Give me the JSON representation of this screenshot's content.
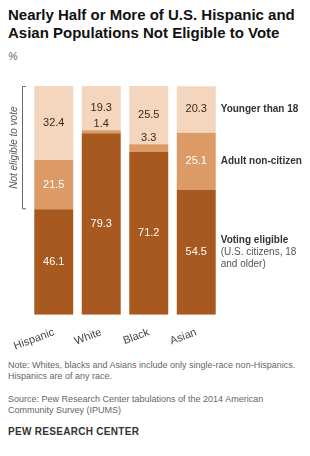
{
  "chart_data": {
    "type": "bar",
    "title": "Nearly Half or More of U.S. Hispanic and Asian Populations Not Eligible to Vote",
    "subtitle": "%",
    "categories": [
      "Hispanic",
      "White",
      "Black",
      "Asian"
    ],
    "series": [
      {
        "name": "Voting eligible",
        "color": "#a8591f",
        "values": [
          46.1,
          79.3,
          71.2,
          54.5
        ]
      },
      {
        "name": "Adult non-citizen",
        "color": "#dc9a66",
        "values": [
          21.5,
          1.4,
          3.3,
          25.1
        ]
      },
      {
        "name": "Younger than 18",
        "color": "#f4d5bd",
        "values": [
          32.4,
          19.3,
          25.5,
          20.3
        ]
      }
    ],
    "ylim": [
      0,
      100
    ],
    "stacked": true,
    "data_labels": true,
    "tick_labels": "x",
    "grid": false,
    "legend": "right",
    "annotations": [
      {
        "text": "Not eligible to vote"
      },
      {
        "text": "(U.S. citizens, 18 and older)",
        "series": "Voting eligible"
      }
    ],
    "note": "Note: Whites, blacks and Asians include only single-race non-Hispanics. Hispanics are of any race.",
    "source": "Source: Pew Research Center tabulations of the 2014 American Community Survey (IPUMS)",
    "credit": "PEW RESEARCH CENTER"
  }
}
